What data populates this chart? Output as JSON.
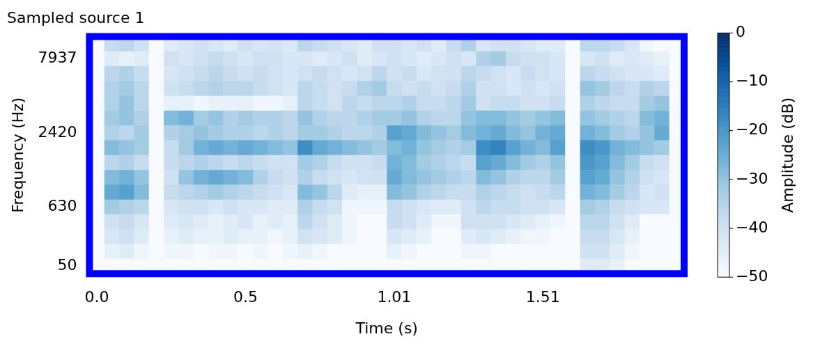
{
  "chart_data": {
    "type": "heatmap",
    "title": "Sampled source 1",
    "xlabel": "Time (s)",
    "ylabel": "Frequency (Hz)",
    "clabel": "Amplitude (dB)",
    "categories": [
      "0.0",
      null,
      null,
      null,
      null,
      null,
      null,
      null,
      null,
      null,
      "0.5",
      null,
      null,
      null,
      null,
      null,
      null,
      null,
      null,
      null,
      "1.01",
      null,
      null,
      null,
      null,
      null,
      null,
      null,
      null,
      null,
      "1.51",
      null,
      null,
      null,
      null,
      null,
      null,
      null,
      null,
      null
    ],
    "y_categories": [
      null,
      "7937",
      null,
      null,
      null,
      null,
      "2420",
      null,
      null,
      null,
      null,
      "630",
      null,
      null,
      null,
      "50"
    ],
    "clim": [
      -50,
      0
    ],
    "cticks": [
      -50,
      -40,
      -30,
      -20,
      -10,
      0
    ],
    "cells": [
      [
        -50,
        -38,
        -36,
        -40,
        -50,
        -44,
        -42,
        -40,
        -42,
        -44,
        -40,
        -42,
        -41,
        -43,
        -36,
        -38,
        -40,
        -42,
        -44,
        -40,
        -40,
        -42,
        -40,
        -44,
        -38,
        -34,
        -42,
        -40,
        -40,
        -42,
        -44,
        -44,
        -50,
        -36,
        -36,
        -38,
        -42,
        -48,
        -50,
        -50
      ],
      [
        -50,
        -44,
        -46,
        -44,
        -50,
        -40,
        -42,
        -40,
        -38,
        -40,
        -42,
        -40,
        -40,
        -42,
        -42,
        -44,
        -42,
        -40,
        -44,
        -42,
        -40,
        -42,
        -44,
        -42,
        -40,
        -42,
        -34,
        -32,
        -38,
        -40,
        -40,
        -42,
        -50,
        -42,
        -40,
        -44,
        -42,
        -44,
        -46,
        -50
      ],
      [
        -50,
        -36,
        -34,
        -38,
        -50,
        -42,
        -40,
        -38,
        -36,
        -38,
        -40,
        -38,
        -40,
        -42,
        -40,
        -38,
        -40,
        -42,
        -40,
        -36,
        -40,
        -38,
        -42,
        -40,
        -40,
        -36,
        -38,
        -40,
        -42,
        -38,
        -40,
        -42,
        -50,
        -36,
        -38,
        -40,
        -42,
        -42,
        -44,
        -50
      ],
      [
        -50,
        -34,
        -32,
        -36,
        -50,
        -40,
        -38,
        -36,
        -34,
        -36,
        -36,
        -38,
        -40,
        -42,
        -36,
        -38,
        -40,
        -38,
        -34,
        -32,
        -38,
        -40,
        -38,
        -40,
        -38,
        -34,
        -40,
        -40,
        -42,
        -40,
        -42,
        -40,
        -50,
        -30,
        -32,
        -36,
        -38,
        -34,
        -36,
        -50
      ],
      [
        -50,
        -34,
        -30,
        -36,
        -50,
        -46,
        -46,
        -48,
        -46,
        -46,
        -46,
        -48,
        -48,
        -46,
        -36,
        -38,
        -40,
        -36,
        -38,
        -36,
        -36,
        -34,
        -38,
        -38,
        -36,
        -32,
        -40,
        -38,
        -38,
        -40,
        -40,
        -38,
        -50,
        -34,
        -36,
        -38,
        -38,
        -32,
        -30,
        -50
      ],
      [
        -50,
        -32,
        -30,
        -34,
        -50,
        -28,
        -26,
        -32,
        -30,
        -34,
        -32,
        -34,
        -34,
        -36,
        -30,
        -34,
        -36,
        -36,
        -34,
        -32,
        -32,
        -30,
        -34,
        -36,
        -36,
        -30,
        -28,
        -28,
        -30,
        -32,
        -30,
        -28,
        -50,
        -30,
        -32,
        -34,
        -36,
        -28,
        -26,
        -50
      ],
      [
        -50,
        -34,
        -36,
        -32,
        -50,
        -34,
        -32,
        -30,
        -32,
        -34,
        -34,
        -36,
        -34,
        -36,
        -32,
        -32,
        -34,
        -36,
        -36,
        -34,
        -22,
        -24,
        -28,
        -30,
        -32,
        -28,
        -26,
        -24,
        -28,
        -30,
        -26,
        -24,
        -50,
        -26,
        -28,
        -32,
        -34,
        -30,
        -24,
        -50
      ],
      [
        -50,
        -28,
        -30,
        -32,
        -50,
        -38,
        -32,
        -26,
        -24,
        -26,
        -24,
        -26,
        -28,
        -30,
        -18,
        -24,
        -26,
        -28,
        -30,
        -32,
        -28,
        -26,
        -30,
        -32,
        -34,
        -32,
        -18,
        -16,
        -22,
        -26,
        -28,
        -22,
        -50,
        -18,
        -20,
        -26,
        -28,
        -30,
        -32,
        -50
      ],
      [
        -50,
        -36,
        -34,
        -38,
        -50,
        -38,
        -36,
        -34,
        -36,
        -38,
        -36,
        -38,
        -40,
        -40,
        -32,
        -34,
        -38,
        -40,
        -40,
        -38,
        -26,
        -28,
        -32,
        -34,
        -36,
        -38,
        -22,
        -24,
        -28,
        -32,
        -34,
        -30,
        -50,
        -20,
        -22,
        -28,
        -32,
        -38,
        -40,
        -50
      ],
      [
        -50,
        -28,
        -26,
        -30,
        -50,
        -40,
        -30,
        -26,
        -24,
        -26,
        -28,
        -34,
        -38,
        -40,
        -34,
        -38,
        -40,
        -42,
        -40,
        -40,
        -24,
        -28,
        -30,
        -32,
        -34,
        -36,
        -28,
        -30,
        -34,
        -36,
        -36,
        -32,
        -50,
        -22,
        -24,
        -30,
        -34,
        -40,
        -42,
        -50
      ],
      [
        -50,
        -24,
        -22,
        -28,
        -50,
        -38,
        -36,
        -34,
        -32,
        -34,
        -36,
        -38,
        -40,
        -42,
        -28,
        -30,
        -36,
        -44,
        -46,
        -46,
        -28,
        -30,
        -34,
        -36,
        -38,
        -38,
        -34,
        -36,
        -38,
        -40,
        -38,
        -36,
        -50,
        -26,
        -28,
        -32,
        -36,
        -42,
        -40,
        -50
      ],
      [
        -50,
        -32,
        -34,
        -36,
        -50,
        -42,
        -40,
        -40,
        -42,
        -40,
        -42,
        -42,
        -44,
        -44,
        -34,
        -38,
        -40,
        -48,
        -48,
        -48,
        -38,
        -40,
        -42,
        -44,
        -44,
        -40,
        -36,
        -38,
        -38,
        -40,
        -40,
        -42,
        -50,
        -32,
        -34,
        -38,
        -40,
        -42,
        -42,
        -50
      ],
      [
        -50,
        -40,
        -38,
        -42,
        -50,
        -44,
        -42,
        -44,
        -46,
        -44,
        -42,
        -46,
        -44,
        -46,
        -36,
        -40,
        -44,
        -48,
        -50,
        -50,
        -38,
        -40,
        -44,
        -48,
        -48,
        -40,
        -40,
        -40,
        -42,
        -44,
        -46,
        -48,
        -50,
        -36,
        -36,
        -40,
        -44,
        -50,
        -50,
        -50
      ],
      [
        -50,
        -42,
        -40,
        -44,
        -50,
        -46,
        -44,
        -46,
        -46,
        -44,
        -46,
        -46,
        -48,
        -46,
        -40,
        -42,
        -44,
        -48,
        -50,
        -50,
        -42,
        -44,
        -46,
        -50,
        -50,
        -44,
        -42,
        -44,
        -46,
        -48,
        -48,
        -50,
        -50,
        -38,
        -38,
        -42,
        -46,
        -50,
        -50,
        -50
      ],
      [
        -50,
        -46,
        -44,
        -48,
        -50,
        -48,
        -48,
        -50,
        -48,
        -48,
        -50,
        -48,
        -50,
        -48,
        -46,
        -48,
        -50,
        -50,
        -50,
        -50,
        -46,
        -48,
        -50,
        -50,
        -50,
        -48,
        -48,
        -50,
        -50,
        -50,
        -50,
        -50,
        -50,
        -40,
        -40,
        -44,
        -48,
        -50,
        -50,
        -50
      ],
      [
        -50,
        -50,
        -50,
        -50,
        -50,
        -50,
        -50,
        -50,
        -50,
        -50,
        -50,
        -50,
        -50,
        -50,
        -50,
        -50,
        -50,
        -50,
        -50,
        -50,
        -50,
        -50,
        -50,
        -50,
        -50,
        -50,
        -50,
        -50,
        -50,
        -50,
        -50,
        -50,
        -50,
        -44,
        -44,
        -46,
        -50,
        -50,
        -50,
        -50
      ]
    ]
  }
}
